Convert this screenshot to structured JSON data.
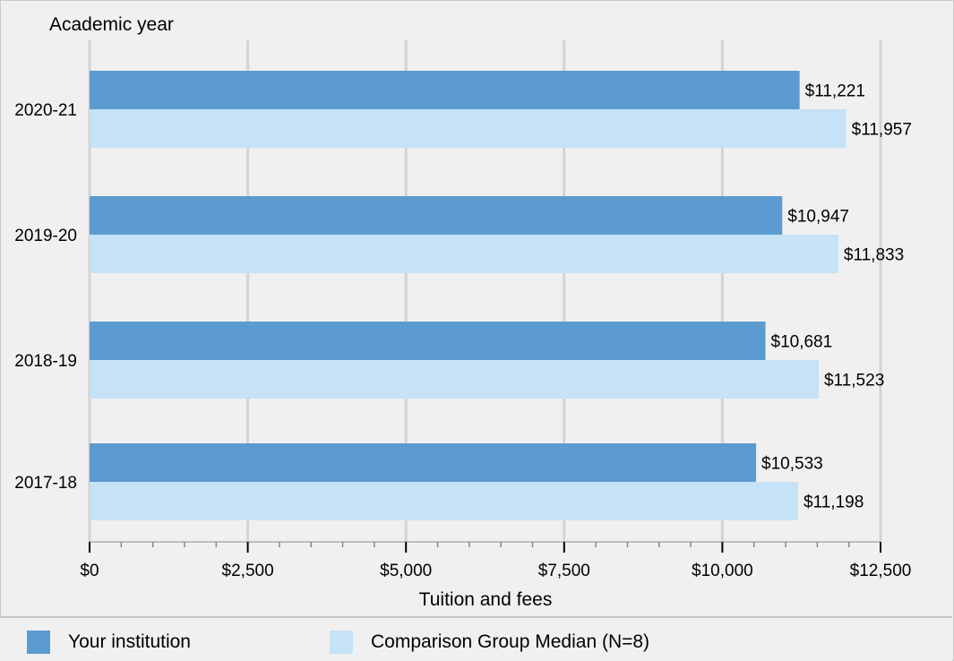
{
  "chart_data": {
    "type": "bar",
    "orientation": "horizontal",
    "ylabel": "Academic year",
    "xlabel": "Tuition and fees",
    "categories": [
      "2020-21",
      "2019-20",
      "2018-19",
      "2017-18"
    ],
    "series": [
      {
        "name": "Your institution",
        "values": [
          11221,
          10947,
          10681,
          10533
        ],
        "labels": [
          "$11,221",
          "$10,947",
          "$10,681",
          "$10,533"
        ],
        "color": "#5b9bd0"
      },
      {
        "name": "Comparison Group Median (N=8)",
        "values": [
          11957,
          11833,
          11523,
          11198
        ],
        "labels": [
          "$11,957",
          "$11,833",
          "$11,523",
          "$11,198"
        ],
        "color": "#c5e2f6"
      }
    ],
    "xlim": [
      0,
      12500
    ],
    "xticks": [
      0,
      2500,
      5000,
      7500,
      10000,
      12500
    ],
    "xtick_labels": [
      "$0",
      "$2,500",
      "$5,000",
      "$7,500",
      "$10,000",
      "$12,500"
    ],
    "grid": true,
    "legend_position": "bottom"
  }
}
